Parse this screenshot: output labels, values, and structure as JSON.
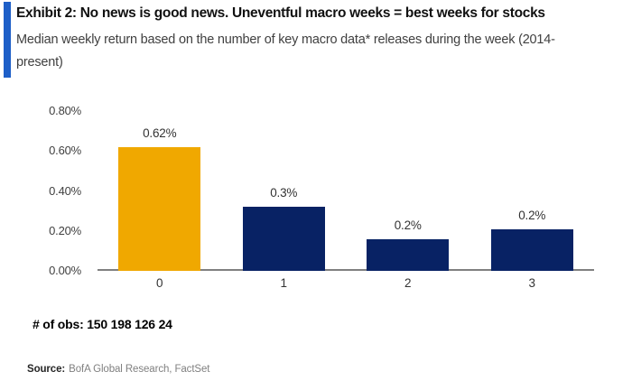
{
  "header": {
    "title": "Exhibit 2: No news is good news. Uneventful macro weeks = best weeks for stocks",
    "subtitle_line1": "Median weekly return based on the number of key macro data* releases during the week (2014-",
    "subtitle_line2": "present)"
  },
  "colors": {
    "accent_blue": "#1E5FC8",
    "bar_gold": "#F0A800",
    "bar_navy": "#082264",
    "axis_line": "#808080",
    "tick_text": "#404040",
    "label_text": "#333333",
    "source_gray": "#808080"
  },
  "chart_data": {
    "type": "bar",
    "title": "Exhibit 2: No news is good news. Uneventful macro weeks = best weeks for stocks",
    "subtitle": "Median weekly return based on the number of key macro data* releases during the week (2014-present)",
    "categories": [
      "0",
      "1",
      "2",
      "3"
    ],
    "values": [
      0.62,
      0.32,
      0.16,
      0.21
    ],
    "bar_labels": [
      "0.62%",
      "0.3%",
      "0.2%",
      "0.2%"
    ],
    "bar_colors": [
      "#F0A800",
      "#082264",
      "#082264",
      "#082264"
    ],
    "xlabel": "",
    "ylabel": "",
    "ylim": [
      0,
      0.8
    ],
    "yticks": [
      {
        "value": 0.8,
        "label": "0.80%"
      },
      {
        "value": 0.6,
        "label": "0.60%"
      },
      {
        "value": 0.4,
        "label": "0.40%"
      },
      {
        "value": 0.2,
        "label": "0.20%"
      },
      {
        "value": 0.0,
        "label": "0.00%"
      }
    ],
    "grid": false,
    "legend": false,
    "unit": "percent"
  },
  "footer": {
    "obs_text": "# of obs: 150 198 126 24",
    "source_label": "Source:",
    "source_text": "BofA Global Research, FactSet"
  }
}
